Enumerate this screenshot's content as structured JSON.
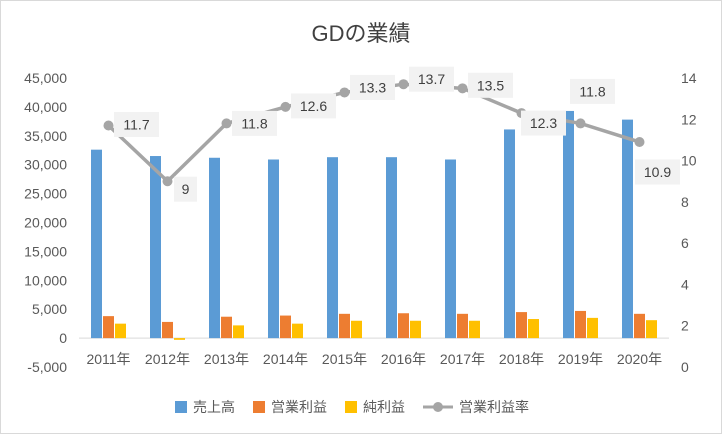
{
  "chart_data": {
    "type": "bar",
    "title": "GDの業績",
    "categories": [
      "2011年",
      "2012年",
      "2013年",
      "2014年",
      "2015年",
      "2016年",
      "2017年",
      "2018年",
      "2019年",
      "2020年"
    ],
    "series": [
      {
        "name": "売上高",
        "kind": "bar",
        "axis": "left",
        "color": "#5B9BD5",
        "values": [
          32600,
          31500,
          31200,
          30900,
          31300,
          31300,
          30900,
          36100,
          39300,
          37800
        ]
      },
      {
        "name": "営業利益",
        "kind": "bar",
        "axis": "left",
        "color": "#ED7D31",
        "values": [
          3800,
          2800,
          3700,
          3900,
          4200,
          4300,
          4200,
          4500,
          4700,
          4200
        ]
      },
      {
        "name": "純利益",
        "kind": "bar",
        "axis": "left",
        "color": "#FFC000",
        "values": [
          2500,
          -300,
          2200,
          2500,
          3000,
          3000,
          3000,
          3300,
          3500,
          3100
        ]
      },
      {
        "name": "営業利益率",
        "kind": "line",
        "axis": "right",
        "color": "#A5A5A5",
        "values": [
          11.7,
          9,
          11.8,
          12.6,
          13.3,
          13.7,
          13.5,
          12.3,
          11.8,
          10.9
        ],
        "labels": [
          "11.7",
          "9",
          "11.8",
          "12.6",
          "13.3",
          "13.7",
          "13.5",
          "12.3",
          "11.8",
          "10.9"
        ]
      }
    ],
    "y_left": {
      "min": -5000,
      "max": 45000,
      "step": 5000,
      "tick_labels": [
        "-5,000",
        "0",
        "5,000",
        "10,000",
        "15,000",
        "20,000",
        "25,000",
        "30,000",
        "35,000",
        "40,000",
        "45,000"
      ]
    },
    "y_right": {
      "min": 0,
      "max": 14,
      "step": 2,
      "tick_labels": [
        "0",
        "2",
        "4",
        "6",
        "8",
        "10",
        "12",
        "14"
      ]
    },
    "grid": false,
    "legend": "bottom"
  }
}
